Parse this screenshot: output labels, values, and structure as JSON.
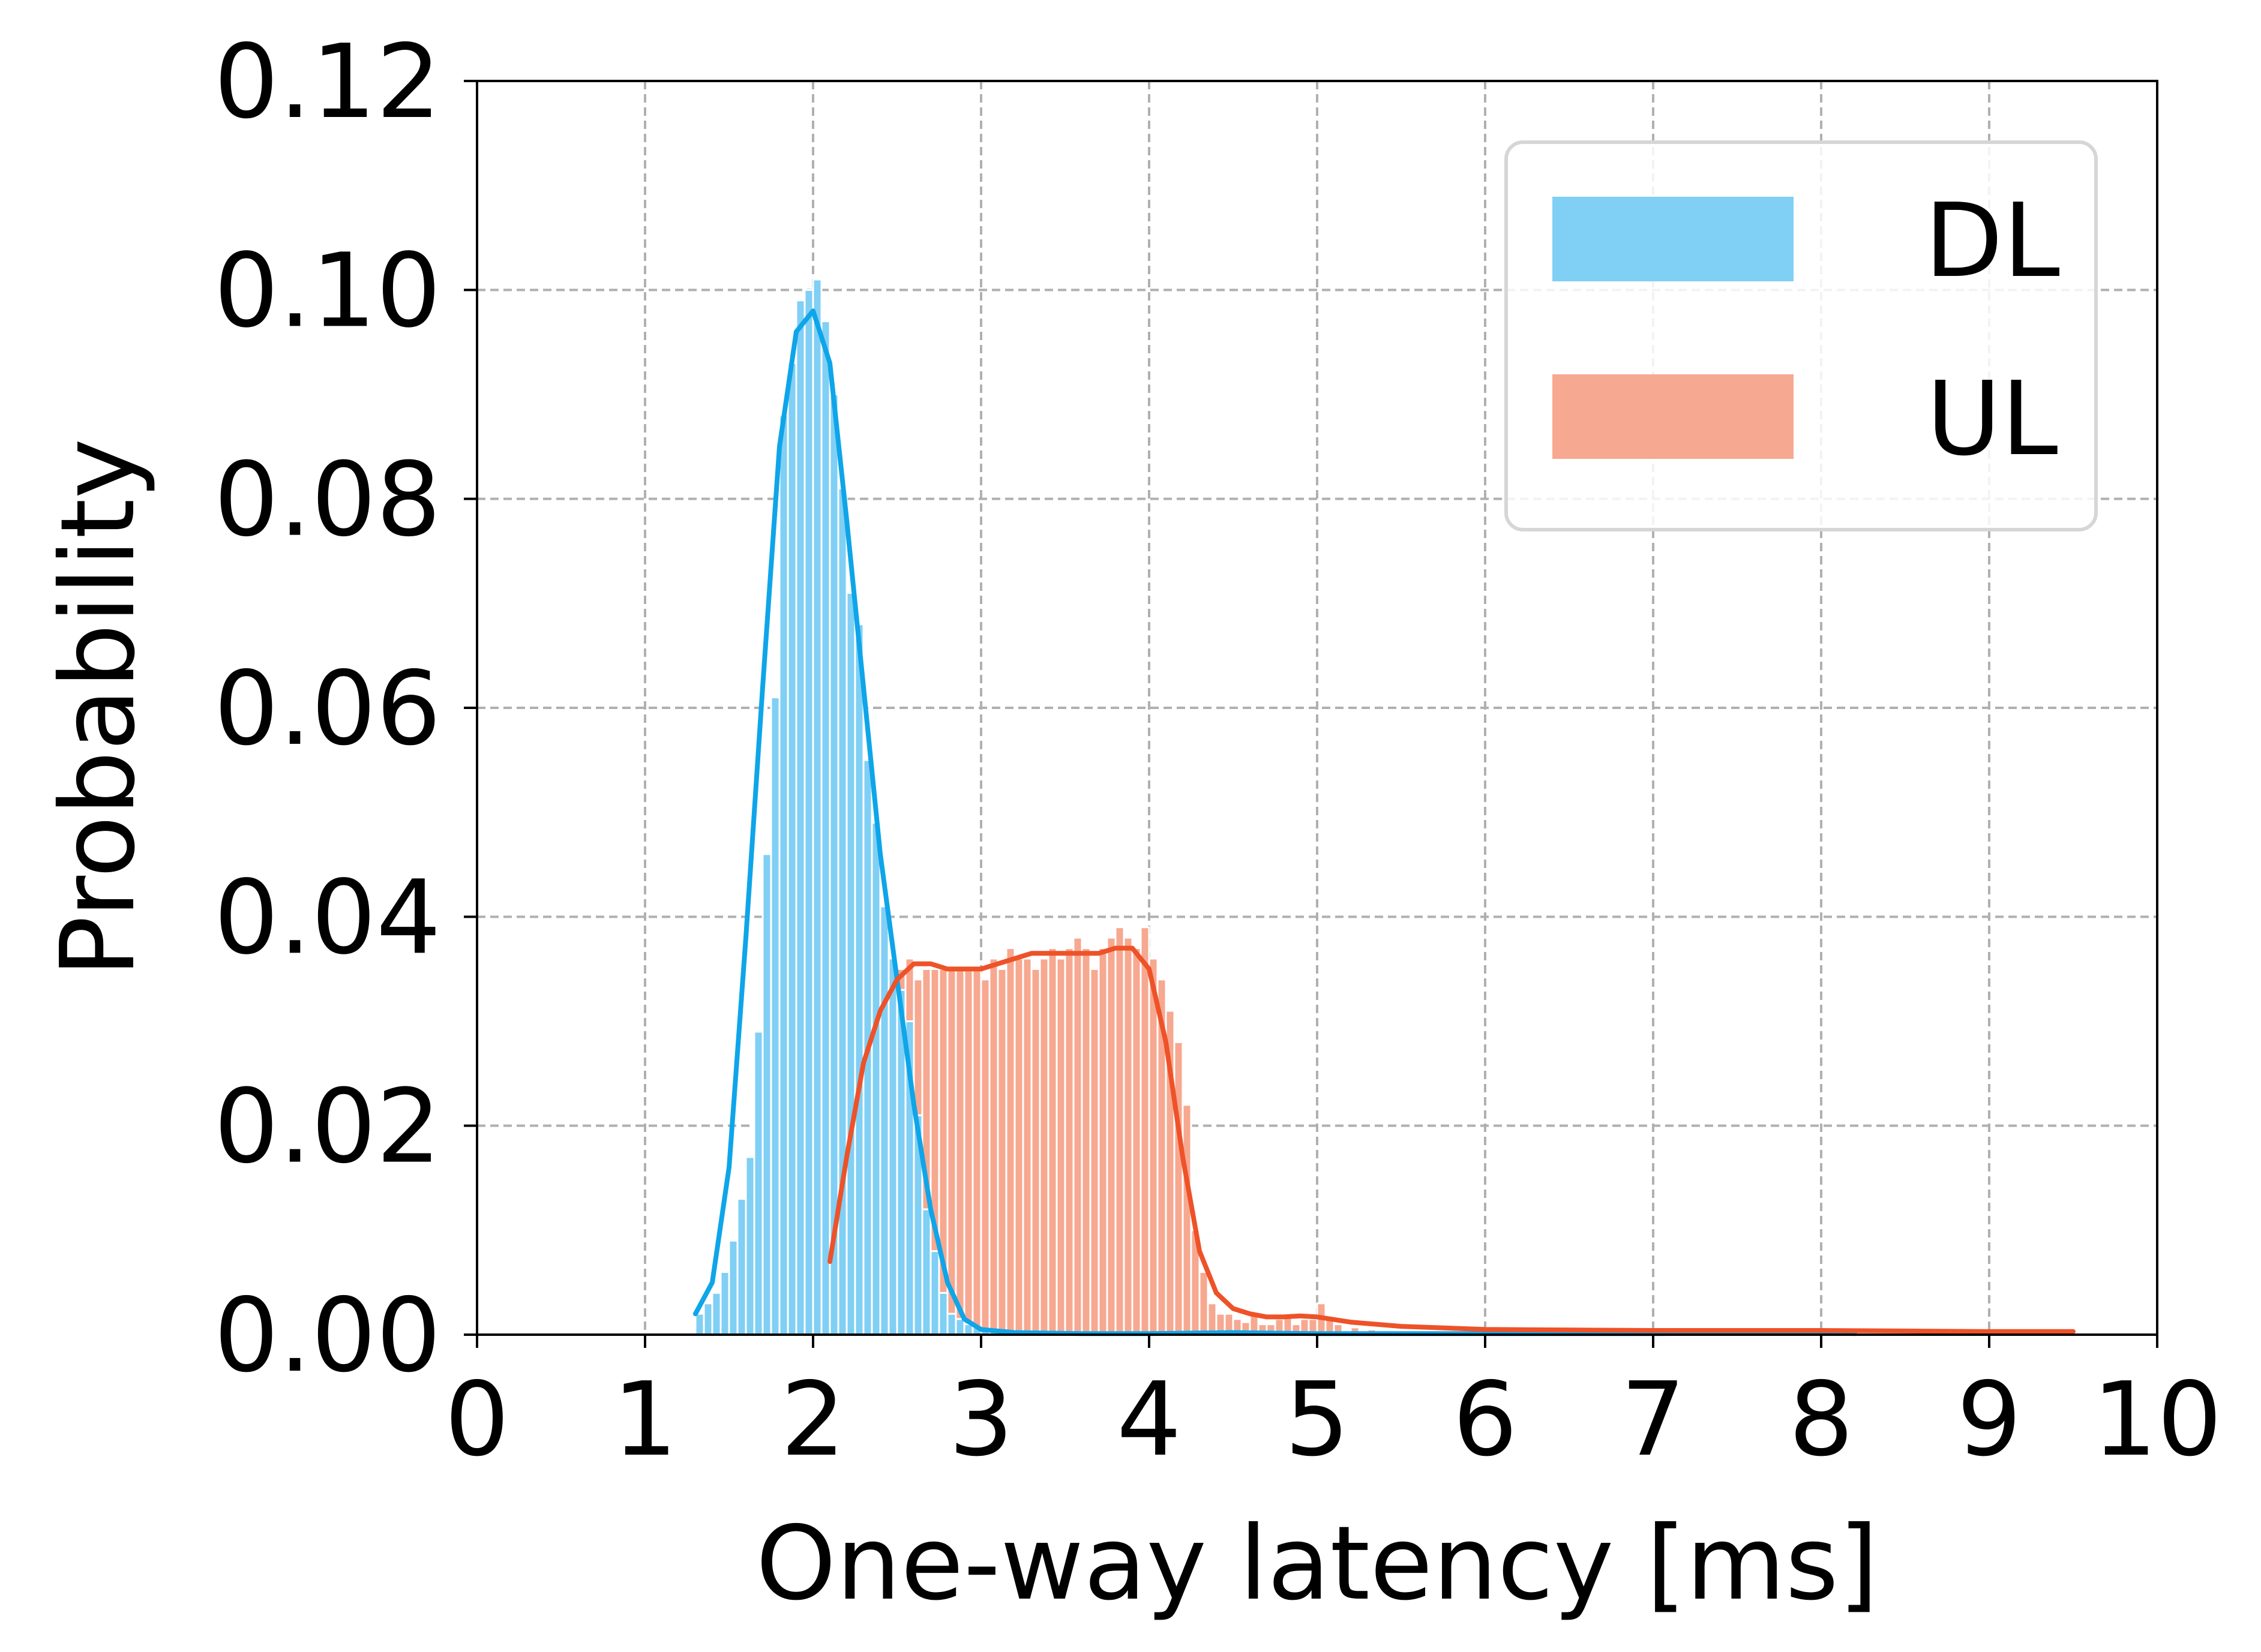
{
  "chart_data": {
    "type": "histogram",
    "title": "",
    "xlabel": "One-way latency [ms]",
    "ylabel": "Probability",
    "xlim": [
      0,
      10
    ],
    "ylim": [
      0,
      0.12
    ],
    "x_ticks": [
      "0",
      "1",
      "2",
      "3",
      "4",
      "5",
      "6",
      "7",
      "8",
      "9",
      "10"
    ],
    "y_ticks": [
      "0.00",
      "0.02",
      "0.04",
      "0.06",
      "0.08",
      "0.10",
      "0.12"
    ],
    "grid": true,
    "legend_position": "top-right",
    "bin_width": 0.05,
    "series": [
      {
        "name": "DL",
        "color": "#80cff4",
        "kde_color": "#0ea5e9",
        "hist": [
          [
            1.3,
            0.002
          ],
          [
            1.35,
            0.003
          ],
          [
            1.4,
            0.004
          ],
          [
            1.45,
            0.006
          ],
          [
            1.5,
            0.009
          ],
          [
            1.55,
            0.013
          ],
          [
            1.6,
            0.017
          ],
          [
            1.65,
            0.029
          ],
          [
            1.7,
            0.046
          ],
          [
            1.75,
            0.061
          ],
          [
            1.8,
            0.088
          ],
          [
            1.85,
            0.093
          ],
          [
            1.9,
            0.099
          ],
          [
            1.95,
            0.1
          ],
          [
            2.0,
            0.101
          ],
          [
            2.05,
            0.097
          ],
          [
            2.1,
            0.09
          ],
          [
            2.15,
            0.081
          ],
          [
            2.2,
            0.071
          ],
          [
            2.25,
            0.068
          ],
          [
            2.3,
            0.055
          ],
          [
            2.35,
            0.049
          ],
          [
            2.4,
            0.041
          ],
          [
            2.45,
            0.036
          ],
          [
            2.5,
            0.033
          ],
          [
            2.55,
            0.03
          ],
          [
            2.6,
            0.021
          ],
          [
            2.65,
            0.012
          ],
          [
            2.7,
            0.008
          ],
          [
            2.75,
            0.004
          ],
          [
            2.8,
            0.002
          ],
          [
            2.85,
            0.0015
          ],
          [
            2.9,
            0.001
          ],
          [
            2.95,
            0.0007
          ],
          [
            3.0,
            0.0005
          ],
          [
            3.05,
            0.0004
          ],
          [
            3.1,
            0.0003
          ],
          [
            3.15,
            0.0003
          ]
        ],
        "kde": [
          [
            1.3,
            0.002
          ],
          [
            1.4,
            0.005
          ],
          [
            1.5,
            0.016
          ],
          [
            1.6,
            0.038
          ],
          [
            1.7,
            0.062
          ],
          [
            1.8,
            0.085
          ],
          [
            1.9,
            0.096
          ],
          [
            2.0,
            0.098
          ],
          [
            2.1,
            0.093
          ],
          [
            2.2,
            0.078
          ],
          [
            2.3,
            0.062
          ],
          [
            2.4,
            0.046
          ],
          [
            2.5,
            0.034
          ],
          [
            2.6,
            0.022
          ],
          [
            2.7,
            0.012
          ],
          [
            2.8,
            0.005
          ],
          [
            2.9,
            0.0015
          ],
          [
            3.0,
            0.0005
          ],
          [
            3.2,
            0.0002
          ],
          [
            3.6,
            0.0001
          ],
          [
            4.0,
            0.0001
          ],
          [
            4.5,
            0.0002
          ],
          [
            5.0,
            0.0001
          ],
          [
            6.0,
            0.0001
          ],
          [
            7.0,
            0.0001
          ],
          [
            8.0,
            0.0002
          ],
          [
            8.2,
            0.0001
          ]
        ]
      },
      {
        "name": "UL",
        "color": "#f7a890",
        "kde_color": "#ee5228",
        "hist": [
          [
            2.1,
            0.007
          ],
          [
            2.15,
            0.015
          ],
          [
            2.2,
            0.018
          ],
          [
            2.25,
            0.025
          ],
          [
            2.3,
            0.032
          ],
          [
            2.35,
            0.033
          ],
          [
            2.4,
            0.03
          ],
          [
            2.45,
            0.026
          ],
          [
            2.5,
            0.035
          ],
          [
            2.55,
            0.036
          ],
          [
            2.6,
            0.034
          ],
          [
            2.65,
            0.035
          ],
          [
            2.7,
            0.035
          ],
          [
            2.75,
            0.035
          ],
          [
            2.8,
            0.035
          ],
          [
            2.85,
            0.035
          ],
          [
            2.9,
            0.035
          ],
          [
            2.95,
            0.035
          ],
          [
            3.0,
            0.034
          ],
          [
            3.05,
            0.036
          ],
          [
            3.1,
            0.035
          ],
          [
            3.15,
            0.037
          ],
          [
            3.2,
            0.036
          ],
          [
            3.25,
            0.036
          ],
          [
            3.3,
            0.035
          ],
          [
            3.35,
            0.036
          ],
          [
            3.4,
            0.037
          ],
          [
            3.45,
            0.036
          ],
          [
            3.5,
            0.037
          ],
          [
            3.55,
            0.038
          ],
          [
            3.6,
            0.037
          ],
          [
            3.65,
            0.035
          ],
          [
            3.7,
            0.037
          ],
          [
            3.75,
            0.038
          ],
          [
            3.8,
            0.039
          ],
          [
            3.85,
            0.038
          ],
          [
            3.9,
            0.037
          ],
          [
            3.95,
            0.039
          ],
          [
            4.0,
            0.036
          ],
          [
            4.05,
            0.034
          ],
          [
            4.1,
            0.031
          ],
          [
            4.15,
            0.028
          ],
          [
            4.2,
            0.022
          ],
          [
            4.25,
            0.01
          ],
          [
            4.3,
            0.006
          ],
          [
            4.35,
            0.003
          ],
          [
            4.4,
            0.002
          ],
          [
            4.45,
            0.002
          ],
          [
            4.5,
            0.0015
          ],
          [
            4.55,
            0.0012
          ],
          [
            4.6,
            0.002
          ],
          [
            4.65,
            0.001
          ],
          [
            4.7,
            0.001
          ],
          [
            4.75,
            0.0015
          ],
          [
            4.8,
            0.002
          ],
          [
            4.85,
            0.001
          ],
          [
            4.9,
            0.0015
          ],
          [
            4.95,
            0.0015
          ],
          [
            5.0,
            0.003
          ],
          [
            5.05,
            0.0015
          ],
          [
            5.1,
            0.001
          ],
          [
            5.2,
            0.0007
          ],
          [
            5.3,
            0.0005
          ],
          [
            5.4,
            0.0004
          ],
          [
            5.5,
            0.0004
          ],
          [
            5.6,
            0.0003
          ],
          [
            5.7,
            0.0003
          ],
          [
            5.8,
            0.0003
          ],
          [
            5.9,
            0.0003
          ],
          [
            6.0,
            0.0002
          ],
          [
            6.5,
            0.0002
          ],
          [
            7.0,
            0.0003
          ],
          [
            7.5,
            0.0002
          ],
          [
            8.0,
            0.0002
          ],
          [
            8.5,
            0.0002
          ],
          [
            9.0,
            0.0002
          ],
          [
            9.5,
            0.0002
          ]
        ],
        "kde": [
          [
            2.1,
            0.007
          ],
          [
            2.2,
            0.017
          ],
          [
            2.3,
            0.026
          ],
          [
            2.4,
            0.031
          ],
          [
            2.5,
            0.034
          ],
          [
            2.6,
            0.0355
          ],
          [
            2.7,
            0.0355
          ],
          [
            2.8,
            0.035
          ],
          [
            2.9,
            0.035
          ],
          [
            3.0,
            0.035
          ],
          [
            3.1,
            0.0355
          ],
          [
            3.2,
            0.036
          ],
          [
            3.3,
            0.0365
          ],
          [
            3.4,
            0.0365
          ],
          [
            3.5,
            0.0365
          ],
          [
            3.6,
            0.0365
          ],
          [
            3.7,
            0.0365
          ],
          [
            3.8,
            0.037
          ],
          [
            3.9,
            0.037
          ],
          [
            4.0,
            0.035
          ],
          [
            4.1,
            0.028
          ],
          [
            4.2,
            0.017
          ],
          [
            4.3,
            0.008
          ],
          [
            4.4,
            0.004
          ],
          [
            4.5,
            0.0025
          ],
          [
            4.6,
            0.002
          ],
          [
            4.7,
            0.0017
          ],
          [
            4.8,
            0.0017
          ],
          [
            4.9,
            0.0018
          ],
          [
            5.0,
            0.0017
          ],
          [
            5.2,
            0.0012
          ],
          [
            5.5,
            0.0008
          ],
          [
            6.0,
            0.0005
          ],
          [
            7.0,
            0.0004
          ],
          [
            8.0,
            0.0004
          ],
          [
            9.0,
            0.0003
          ],
          [
            9.5,
            0.0003
          ]
        ]
      }
    ]
  }
}
